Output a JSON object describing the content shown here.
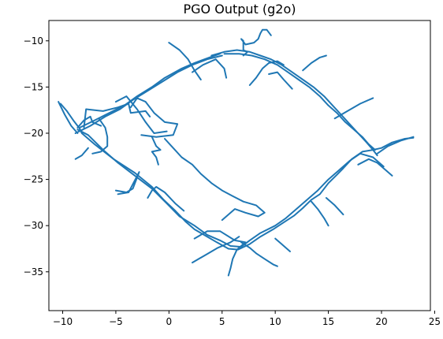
{
  "chart_data": {
    "type": "line",
    "title": "PGO Output (g2o)",
    "xlabel": "",
    "ylabel": "",
    "xlim": [
      -11.3,
      24.6
    ],
    "ylim": [
      -39.2,
      -7.8
    ],
    "xticks": [
      -10,
      -5,
      0,
      5,
      10,
      15,
      20,
      25
    ],
    "yticks": [
      -10,
      -15,
      -20,
      -25,
      -30,
      -35
    ],
    "grid": false,
    "legend": "none",
    "series_color": "#1f77b4",
    "series": [
      {
        "x": [
          -10.2,
          -9.6,
          -9.0,
          -8.4,
          -8.2,
          -7.0,
          -5.2,
          -3.2,
          -1.6,
          -0.5,
          0.6,
          1.6,
          2.4,
          3.6,
          4.5,
          5.6,
          6.5,
          7.6,
          8.6,
          9.8,
          10.6,
          11.8,
          12.6,
          13.4,
          14.2,
          15.0,
          15.8,
          16.4,
          17.2,
          18.2,
          19.2,
          20.0,
          21.0,
          22.2,
          23.0
        ],
        "y": [
          -16.8,
          -17.6,
          -18.6,
          -19.5,
          -20.0,
          -21.2,
          -22.8,
          -24.3,
          -25.8,
          -27.2,
          -28.4,
          -29.6,
          -30.4,
          -31.2,
          -31.8,
          -32.5,
          -32.6,
          -32.0,
          -31.2,
          -30.4,
          -29.8,
          -28.9,
          -28.1,
          -27.2,
          -26.6,
          -25.4,
          -24.5,
          -23.8,
          -22.8,
          -22.0,
          -21.8,
          -21.6,
          -21.0,
          -20.6,
          -20.5
        ]
      },
      {
        "x": [
          -8.6,
          -7.6,
          -6.2,
          -4.8,
          -3.2,
          -1.6,
          -0.2,
          1.0,
          2.4,
          3.6,
          4.8,
          5.8,
          6.8,
          7.6,
          8.6,
          10.0,
          11.0,
          12.2,
          13.2,
          14.0,
          15.0,
          16.0,
          17.0,
          18.0,
          19.2,
          20.2
        ],
        "y": [
          -19.6,
          -20.2,
          -21.8,
          -23.2,
          -24.6,
          -26.0,
          -27.6,
          -29.0,
          -30.0,
          -31.0,
          -31.6,
          -32.2,
          -32.3,
          -31.6,
          -30.8,
          -30.0,
          -29.2,
          -28.0,
          -27.0,
          -26.2,
          -25.0,
          -24.0,
          -23.0,
          -22.2,
          -22.6,
          -23.6
        ]
      },
      {
        "x": [
          -8.4,
          -7.0,
          -5.6,
          -4.2,
          -3.0,
          -1.6,
          -0.4,
          1.2,
          2.4,
          3.8,
          4.8
        ],
        "y": [
          -19.4,
          -18.6,
          -17.8,
          -17.0,
          -16.0,
          -15.0,
          -14.0,
          -13.0,
          -12.4,
          -11.8,
          -11.4
        ]
      },
      {
        "x": [
          -8.8,
          -7.4,
          -6.0,
          -4.6,
          -3.4,
          -2.0,
          -0.6,
          0.8,
          2.2,
          3.6,
          5.0
        ],
        "y": [
          -20.0,
          -19.2,
          -18.2,
          -17.4,
          -16.4,
          -15.4,
          -14.4,
          -13.4,
          -12.6,
          -12.0,
          -11.6
        ]
      },
      {
        "x": [
          4.0,
          5.2,
          6.4,
          7.6,
          8.6,
          9.6,
          10.6,
          11.6,
          12.6,
          13.6,
          14.6,
          15.4,
          16.2,
          17.0,
          17.8,
          18.6,
          19.2,
          19.6
        ],
        "y": [
          -11.6,
          -11.2,
          -11.0,
          -11.2,
          -11.6,
          -12.0,
          -12.6,
          -13.4,
          -14.2,
          -15.0,
          -16.0,
          -17.0,
          -18.0,
          -19.0,
          -20.0,
          -21.0,
          -21.8,
          -22.4
        ]
      },
      {
        "x": [
          5.2,
          6.6,
          7.8,
          9.0,
          10.2,
          11.2,
          12.2,
          13.2,
          14.2,
          15.0,
          15.8,
          16.6,
          17.4,
          18.2,
          18.8,
          19.4
        ],
        "y": [
          -11.4,
          -11.4,
          -11.6,
          -12.0,
          -12.6,
          -13.4,
          -14.2,
          -15.0,
          -16.0,
          -17.0,
          -17.8,
          -18.8,
          -19.6,
          -20.4,
          -21.2,
          -21.8
        ]
      },
      {
        "x": [
          0.0,
          1.0,
          1.8,
          2.4,
          3.0
        ],
        "y": [
          -10.2,
          -11.0,
          -12.0,
          -13.2,
          -14.2
        ]
      },
      {
        "x": [
          2.2,
          3.2,
          4.4,
          5.2,
          5.4
        ],
        "y": [
          -13.4,
          -12.6,
          -12.0,
          -13.0,
          -14.0
        ]
      },
      {
        "x": [
          7.0,
          7.4,
          7.0,
          7.0,
          6.8,
          7.2,
          8.0,
          8.4,
          8.6,
          8.8,
          9.2,
          9.6
        ],
        "y": [
          -11.6,
          -11.2,
          -11.0,
          -10.0,
          -9.8,
          -10.4,
          -10.2,
          -9.8,
          -9.2,
          -8.8,
          -8.8,
          -9.4
        ]
      },
      {
        "x": [
          7.6,
          8.2,
          8.8,
          9.4,
          10.2,
          10.8
        ],
        "y": [
          -14.8,
          -14.0,
          -13.0,
          -12.4,
          -12.2,
          -12.6
        ]
      },
      {
        "x": [
          9.4,
          10.2,
          10.8,
          11.6
        ],
        "y": [
          -13.6,
          -13.4,
          -14.2,
          -15.2
        ]
      },
      {
        "x": [
          12.6,
          13.4,
          14.2,
          14.8
        ],
        "y": [
          -13.2,
          -12.4,
          -11.8,
          -11.6
        ]
      },
      {
        "x": [
          15.6,
          16.8,
          18.0,
          19.2
        ],
        "y": [
          -18.4,
          -17.6,
          -16.8,
          -16.2
        ]
      },
      {
        "x": [
          -10.4,
          -9.8,
          -9.2,
          -8.6
        ],
        "y": [
          -16.6,
          -18.0,
          -19.2,
          -20.0
        ]
      },
      {
        "x": [
          -8.6,
          -8.0,
          -7.4,
          -7.2,
          -6.4
        ],
        "y": [
          -19.4,
          -18.6,
          -18.2,
          -18.8,
          -19.2
        ]
      },
      {
        "x": [
          -8.0,
          -7.8,
          -6.2,
          -4.8,
          -3.8,
          -3.6,
          -2.2,
          -1.8
        ],
        "y": [
          -19.4,
          -17.4,
          -17.6,
          -17.2,
          -16.8,
          -17.8,
          -17.6,
          -18.2
        ]
      },
      {
        "x": [
          -6.6,
          -6.0,
          -5.8,
          -5.8,
          -6.4,
          -7.2
        ],
        "y": [
          -18.4,
          -19.4,
          -20.4,
          -21.4,
          -22.0,
          -22.2
        ]
      },
      {
        "x": [
          -7.6,
          -8.2,
          -8.8
        ],
        "y": [
          -21.6,
          -22.4,
          -22.8
        ]
      },
      {
        "x": [
          -5.0,
          -4.0,
          -3.0,
          -2.2,
          -1.4,
          -0.2
        ],
        "y": [
          -16.6,
          -16.0,
          -17.4,
          -18.8,
          -20.0,
          -19.8
        ]
      },
      {
        "x": [
          -3.6,
          -3.0,
          -2.2,
          -1.4,
          -0.4,
          0.8,
          0.4,
          -1.2,
          -2.6
        ],
        "y": [
          -17.2,
          -16.2,
          -16.6,
          -17.8,
          -18.8,
          -19.0,
          -20.2,
          -20.4,
          -20.2
        ]
      },
      {
        "x": [
          -1.6,
          -1.2,
          -0.8,
          -1.6,
          -1.2,
          -1.0
        ],
        "y": [
          -20.4,
          -21.4,
          -21.8,
          -22.0,
          -22.6,
          -23.4
        ]
      },
      {
        "x": [
          -0.4,
          0.4,
          1.2,
          2.2,
          3.0,
          4.0,
          5.0,
          6.0,
          7.0,
          8.2,
          9.0,
          8.4,
          7.2,
          6.2,
          5.0
        ],
        "y": [
          -20.6,
          -21.6,
          -22.6,
          -23.4,
          -24.4,
          -25.4,
          -26.2,
          -26.8,
          -27.4,
          -27.8,
          -28.6,
          -29.0,
          -28.6,
          -28.2,
          -29.4
        ]
      },
      {
        "x": [
          -5.0,
          -4.0,
          -3.4,
          -3.2,
          -2.8,
          -3.8,
          -4.8
        ],
        "y": [
          -26.2,
          -26.4,
          -26.0,
          -25.4,
          -24.2,
          -26.4,
          -26.6
        ]
      },
      {
        "x": [
          -2.0,
          -1.6,
          -1.2,
          -0.4,
          0.6,
          1.4
        ],
        "y": [
          -27.0,
          -26.2,
          -25.8,
          -26.4,
          -27.6,
          -28.4
        ]
      },
      {
        "x": [
          2.2,
          3.4,
          4.6,
          5.8,
          6.6
        ],
        "y": [
          -34.0,
          -33.2,
          -32.4,
          -31.8,
          -31.2
        ]
      },
      {
        "x": [
          2.4,
          3.6,
          4.8,
          6.2,
          7.2,
          6.4,
          6.0,
          5.8,
          5.6
        ],
        "y": [
          -31.4,
          -30.6,
          -30.6,
          -31.6,
          -31.8,
          -32.6,
          -33.6,
          -34.6,
          -35.4
        ]
      },
      {
        "x": [
          6.8,
          7.6,
          8.2,
          9.0,
          9.8,
          10.2
        ],
        "y": [
          -31.8,
          -32.4,
          -33.0,
          -33.6,
          -34.2,
          -34.4
        ]
      },
      {
        "x": [
          10.0,
          10.4,
          11.0,
          11.4
        ],
        "y": [
          -31.4,
          -31.8,
          -32.4,
          -32.8
        ]
      },
      {
        "x": [
          13.4,
          14.0,
          14.6,
          15.0
        ],
        "y": [
          -27.4,
          -28.2,
          -29.2,
          -30.0
        ]
      },
      {
        "x": [
          14.8,
          15.6,
          16.4
        ],
        "y": [
          -27.0,
          -27.8,
          -28.8
        ]
      },
      {
        "x": [
          17.8,
          18.8,
          19.6,
          20.2,
          21.0
        ],
        "y": [
          -23.4,
          -22.8,
          -23.2,
          -23.8,
          -24.6
        ]
      },
      {
        "x": [
          19.6,
          20.6,
          21.8,
          23.0
        ],
        "y": [
          -22.2,
          -21.4,
          -20.8,
          -20.4
        ]
      }
    ]
  }
}
